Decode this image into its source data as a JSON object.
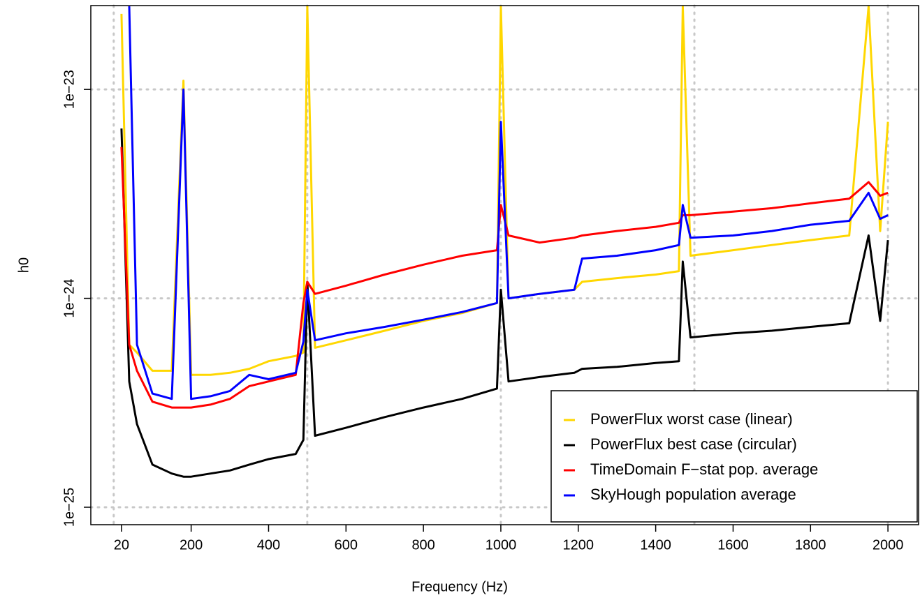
{
  "chart_data": {
    "type": "line",
    "x_label": "Frequency (Hz)",
    "y_label": "h0",
    "log_y": true,
    "grid": true,
    "legend": "bottomright",
    "xlim": [
      -59.2,
      2079.2
    ],
    "ylim": [
      8.25e-26,
      2.52e-23
    ],
    "xticks": [
      20,
      200,
      400,
      600,
      800,
      1000,
      1200,
      1400,
      1600,
      1800,
      2000
    ],
    "xgrid": [
      0,
      500,
      1000,
      1500,
      2000
    ],
    "yticks": [
      {
        "value": 1e-25,
        "label": "1e−25"
      },
      {
        "value": 1e-24,
        "label": "1e−24"
      },
      {
        "value": 1e-23,
        "label": "1e−23"
      }
    ],
    "x": [
      20,
      40,
      60,
      100,
      150,
      180,
      200,
      250,
      300,
      350,
      400,
      470,
      490,
      500,
      520,
      600,
      700,
      800,
      900,
      990,
      1000,
      1020,
      1100,
      1190,
      1210,
      1300,
      1400,
      1460,
      1470,
      1490,
      1600,
      1700,
      1800,
      1900,
      1950,
      1980,
      2000
    ],
    "series": [
      {
        "name": "PowerFlux worst case (linear)",
        "color": "#ffd700",
        "values": [
          2.3e-23,
          6e-25,
          5.5e-25,
          4.5e-25,
          4.5e-25,
          1.1e-23,
          4.3e-25,
          4.3e-25,
          4.4e-25,
          4.6e-25,
          5e-25,
          5.3e-25,
          5.5e-25,
          2.5e-23,
          5.8e-25,
          6.3e-25,
          7e-25,
          7.8e-25,
          8.5e-25,
          9.5e-25,
          2.5e-23,
          1e-24,
          1.05e-24,
          1.1e-24,
          1.2e-24,
          1.25e-24,
          1.3e-24,
          1.35e-24,
          2.5e-23,
          1.6e-24,
          1.7e-24,
          1.8e-24,
          1.9e-24,
          2e-24,
          2.5e-23,
          2.1e-24,
          7e-24
        ]
      },
      {
        "name": "PowerFlux best case (circular)",
        "color": "#000000",
        "values": [
          6.5e-24,
          4e-25,
          2.5e-25,
          1.6e-25,
          1.45e-25,
          1.4e-25,
          1.4e-25,
          1.45e-25,
          1.5e-25,
          1.6e-25,
          1.7e-25,
          1.8e-25,
          2.1e-25,
          1.2e-24,
          2.2e-25,
          2.4e-25,
          2.7e-25,
          3e-25,
          3.3e-25,
          3.7e-25,
          1.1e-24,
          4e-25,
          4.2e-25,
          4.4e-25,
          4.6e-25,
          4.7e-25,
          4.9e-25,
          5e-25,
          1.5e-24,
          6.5e-25,
          6.8e-25,
          7e-25,
          7.3e-25,
          7.6e-25,
          2e-24,
          7.8e-25,
          1.9e-24
        ]
      },
      {
        "name": "TimeDomain F−stat pop. average",
        "color": "#ff0000",
        "values": [
          5.3e-24,
          6e-25,
          4.5e-25,
          3.2e-25,
          3e-25,
          3e-25,
          3e-25,
          3.1e-25,
          3.3e-25,
          3.8e-25,
          4e-25,
          4.3e-25,
          9.5e-25,
          1.2e-24,
          1.05e-24,
          1.15e-24,
          1.3e-24,
          1.45e-24,
          1.6e-24,
          1.7e-24,
          2.8e-24,
          2e-24,
          1.85e-24,
          1.95e-24,
          2e-24,
          2.1e-24,
          2.2e-24,
          2.3e-24,
          2.5e-24,
          2.5e-24,
          2.6e-24,
          2.7e-24,
          2.85e-24,
          3e-24,
          3.6e-24,
          3.1e-24,
          3.2e-24
        ]
      },
      {
        "name": "SkyHough population average",
        "color": "#0000ff",
        "values": [
          null,
          2.5e-23,
          6e-25,
          3.5e-25,
          3.3e-25,
          1e-23,
          3.3e-25,
          3.4e-25,
          3.6e-25,
          4.3e-25,
          4.1e-25,
          4.4e-25,
          6.2e-25,
          1.1e-24,
          6.3e-25,
          6.8e-25,
          7.3e-25,
          7.9e-25,
          8.6e-25,
          9.5e-25,
          7e-24,
          1e-24,
          1.05e-24,
          1.1e-24,
          1.55e-24,
          1.6e-24,
          1.7e-24,
          1.8e-24,
          2.8e-24,
          1.95e-24,
          2e-24,
          2.1e-24,
          2.25e-24,
          2.35e-24,
          3.2e-24,
          2.4e-24,
          2.5e-24
        ]
      }
    ]
  }
}
